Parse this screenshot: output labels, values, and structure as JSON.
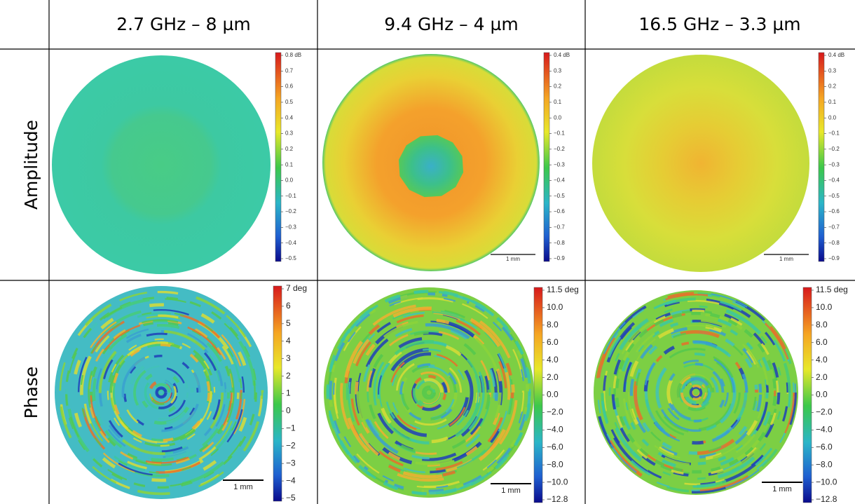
{
  "header": {
    "columns": [
      "2.7 GHz – 8 µm",
      "9.4 GHz – 4 µm",
      "16.5 GHz – 3.3 µm"
    ]
  },
  "rows": [
    {
      "label": "Amplitude",
      "cells": [
        {
          "colorbar": [
            "0.8 dB",
            "0.7",
            "0.6",
            "0.5",
            "0.4",
            "0.3",
            "0.2",
            "0.1",
            "0.0",
            "−0.1",
            "−0.2",
            "−0.3",
            "−0.4",
            "−0.5"
          ]
        },
        {
          "colorbar": [
            "0.4 dB",
            "0.3",
            "0.2",
            "0.1",
            "0.0",
            "−0.1",
            "−0.2",
            "−0.3",
            "−0.4",
            "−0.5",
            "−0.6",
            "−0.7",
            "−0.8",
            "−0.9"
          ],
          "scale_bar": "1 mm"
        },
        {
          "colorbar": [
            "0.4 dB",
            "0.3",
            "0.2",
            "0.1",
            "0.0",
            "−0.1",
            "−0.2",
            "−0.3",
            "−0.4",
            "−0.5",
            "−0.6",
            "−0.7",
            "−0.8",
            "−0.9"
          ],
          "scale_bar": "1 mm"
        }
      ]
    },
    {
      "label": "Phase",
      "cells": [
        {
          "colorbar": [
            "7 deg",
            "6",
            "5",
            "4",
            "3",
            "2",
            "1",
            "0",
            "−1",
            "−2",
            "−3",
            "−4",
            "−5"
          ],
          "scale_bar": "1 mm"
        },
        {
          "colorbar": [
            "11.5 deg",
            "10.0",
            "8.0",
            "6.0",
            "4.0",
            "2.0",
            "0.0",
            "−2.0",
            "−4.0",
            "−6.0",
            "−8.0",
            "−10.0",
            "−12.8"
          ],
          "scale_bar": "1 mm"
        },
        {
          "colorbar": [
            "11.5 deg",
            "10.0",
            "8.0",
            "6.0",
            "4.0",
            "2.0",
            "0.0",
            "−2.0",
            "−4.0",
            "−6.0",
            "−8.0",
            "−10.0",
            "−12.8"
          ],
          "scale_bar": "1 mm"
        }
      ]
    }
  ]
}
